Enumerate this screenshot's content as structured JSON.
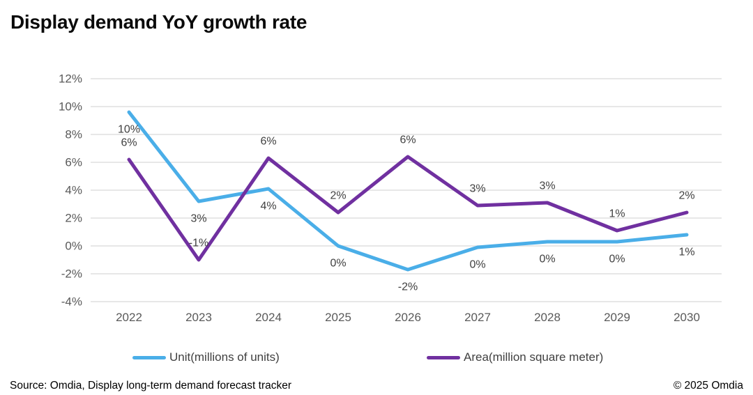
{
  "title": "Display demand YoY growth rate",
  "source": "Source: Omdia, Display long-term demand forecast tracker",
  "copyright": "© 2025 Omdia",
  "legend": {
    "items": [
      {
        "label": "Unit(millions of units)",
        "color": "#4AAEE8"
      },
      {
        "label": "Area(million square meter)",
        "color": "#7030A0"
      }
    ]
  },
  "colors": {
    "unit_line": "#4AAEE8",
    "area_line": "#7030A0",
    "gridline": "#E7E7E7",
    "axis_text": "#595959",
    "data_label_text": "#404040"
  },
  "chart_data": {
    "type": "line",
    "title": "Display demand YoY growth rate",
    "xlabel": "",
    "ylabel": "",
    "categories": [
      "2022",
      "2023",
      "2024",
      "2025",
      "2026",
      "2027",
      "2028",
      "2029",
      "2030"
    ],
    "series": [
      {
        "name": "Unit(millions of units)",
        "color": "#4AAEE8",
        "values": [
          9.6,
          3.2,
          4.1,
          0.0,
          -1.7,
          -0.1,
          0.3,
          0.3,
          0.8
        ],
        "labels": [
          "10%",
          "3%",
          "4%",
          "0%",
          "-2%",
          "0%",
          "0%",
          "0%",
          "1%"
        ],
        "label_side": "below"
      },
      {
        "name": "Area(million square meter)",
        "color": "#7030A0",
        "values": [
          6.2,
          -1.0,
          6.3,
          2.4,
          6.4,
          2.9,
          3.1,
          1.1,
          2.4
        ],
        "labels": [
          "6%",
          "-1%",
          "6%",
          "2%",
          "6%",
          "3%",
          "3%",
          "1%",
          "2%"
        ],
        "label_side": "above"
      }
    ],
    "ylim": [
      -4,
      12
    ],
    "ytick_step": 2,
    "ytick_labels": [
      "12%",
      "10%",
      "8%",
      "6%",
      "4%",
      "2%",
      "0%",
      "-2%",
      "-4%"
    ],
    "grid": true,
    "legend_position": "bottom"
  }
}
